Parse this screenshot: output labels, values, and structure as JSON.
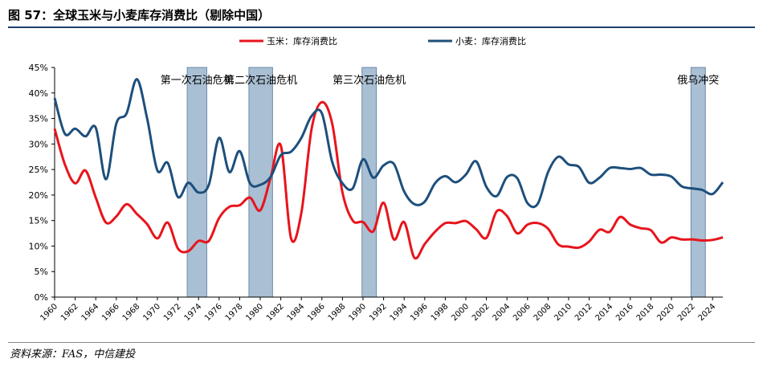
{
  "title": "图 57：全球玉米与小麦库存消费比（剔除中国）",
  "source": "资料来源：FAS，中信建投",
  "chart_data": {
    "type": "line",
    "y_ticks": [
      "0%",
      "5%",
      "10%",
      "15%",
      "20%",
      "25%",
      "30%",
      "35%",
      "40%",
      "45%"
    ],
    "ylim": [
      0,
      45
    ],
    "xlim": [
      1960,
      2025
    ],
    "x_ticks": [
      "1960",
      "1962",
      "1964",
      "1966",
      "1968",
      "1970",
      "1972",
      "1974",
      "1976",
      "1978",
      "1980",
      "1982",
      "1984",
      "1986",
      "1988",
      "1990",
      "1992",
      "1994",
      "1996",
      "1998",
      "2000",
      "2002",
      "2004",
      "2006",
      "2008",
      "2010",
      "2012",
      "2014",
      "2016",
      "2018",
      "2020",
      "2022",
      "2024"
    ],
    "x_tick_values": [
      1960,
      1962,
      1964,
      1966,
      1968,
      1970,
      1972,
      1974,
      1976,
      1978,
      1980,
      1982,
      1984,
      1986,
      1988,
      1990,
      1992,
      1994,
      1996,
      1998,
      2000,
      2002,
      2004,
      2006,
      2008,
      2010,
      2012,
      2014,
      2016,
      2018,
      2020,
      2022,
      2024
    ],
    "series": [
      {
        "name": "玉米：库存消费比",
        "color": "#e8141c",
        "points": [
          [
            1960,
            33
          ],
          [
            1961,
            26
          ],
          [
            1962,
            22.3
          ],
          [
            1963,
            24.8
          ],
          [
            1964,
            19.5
          ],
          [
            1965,
            14.6
          ],
          [
            1966,
            15.8
          ],
          [
            1967,
            18.2
          ],
          [
            1968,
            16.3
          ],
          [
            1969,
            14.3
          ],
          [
            1970,
            11.5
          ],
          [
            1971,
            14.6
          ],
          [
            1972,
            9.5
          ],
          [
            1973,
            9
          ],
          [
            1974,
            11
          ],
          [
            1975,
            11
          ],
          [
            1976,
            15.5
          ],
          [
            1977,
            17.7
          ],
          [
            1978,
            18
          ],
          [
            1979,
            19.5
          ],
          [
            1980,
            17
          ],
          [
            1981,
            23.3
          ],
          [
            1982,
            29.7
          ],
          [
            1983,
            11.5
          ],
          [
            1984,
            16.5
          ],
          [
            1985,
            33
          ],
          [
            1986,
            38.2
          ],
          [
            1987,
            34
          ],
          [
            1988,
            20.5
          ],
          [
            1989,
            15
          ],
          [
            1990,
            14.7
          ],
          [
            1991,
            12.9
          ],
          [
            1992,
            18.5
          ],
          [
            1993,
            11.3
          ],
          [
            1994,
            14.7
          ],
          [
            1995,
            7.7
          ],
          [
            1996,
            10.4
          ],
          [
            1997,
            12.8
          ],
          [
            1998,
            14.5
          ],
          [
            1999,
            14.5
          ],
          [
            2000,
            14.9
          ],
          [
            2001,
            13.3
          ],
          [
            2002,
            11.6
          ],
          [
            2003,
            16.8
          ],
          [
            2004,
            15.9
          ],
          [
            2005,
            12.5
          ],
          [
            2006,
            14.2
          ],
          [
            2007,
            14.5
          ],
          [
            2008,
            13.4
          ],
          [
            2009,
            10.3
          ],
          [
            2010,
            9.9
          ],
          [
            2011,
            9.7
          ],
          [
            2012,
            10.9
          ],
          [
            2013,
            13.2
          ],
          [
            2014,
            12.8
          ],
          [
            2015,
            15.7
          ],
          [
            2016,
            14.2
          ],
          [
            2017,
            13.5
          ],
          [
            2018,
            13.1
          ],
          [
            2019,
            10.7
          ],
          [
            2020,
            11.7
          ],
          [
            2021,
            11.3
          ],
          [
            2022,
            11.3
          ],
          [
            2023,
            11.1
          ],
          [
            2024,
            11.2
          ],
          [
            2025,
            11.7
          ]
        ]
      },
      {
        "name": "小麦：库存消费比",
        "color": "#1d4f7c",
        "points": [
          [
            1960,
            39
          ],
          [
            1961,
            32
          ],
          [
            1962,
            33
          ],
          [
            1963,
            31.5
          ],
          [
            1964,
            33.2
          ],
          [
            1965,
            23.1
          ],
          [
            1966,
            34
          ],
          [
            1967,
            36
          ],
          [
            1968,
            42.7
          ],
          [
            1969,
            35
          ],
          [
            1970,
            24.8
          ],
          [
            1971,
            26.3
          ],
          [
            1972,
            19.6
          ],
          [
            1973,
            22.4
          ],
          [
            1974,
            20.5
          ],
          [
            1975,
            22
          ],
          [
            1976,
            31.2
          ],
          [
            1977,
            24.5
          ],
          [
            1978,
            28.6
          ],
          [
            1979,
            22.3
          ],
          [
            1980,
            22
          ],
          [
            1981,
            23.5
          ],
          [
            1982,
            27.8
          ],
          [
            1983,
            28.5
          ],
          [
            1984,
            31.2
          ],
          [
            1985,
            35.5
          ],
          [
            1986,
            36
          ],
          [
            1987,
            26.5
          ],
          [
            1988,
            22.3
          ],
          [
            1989,
            21.3
          ],
          [
            1990,
            27
          ],
          [
            1991,
            23.4
          ],
          [
            1992,
            25.8
          ],
          [
            1993,
            26.1
          ],
          [
            1994,
            20.7
          ],
          [
            1995,
            18.2
          ],
          [
            1996,
            18.7
          ],
          [
            1997,
            22.3
          ],
          [
            1998,
            23.7
          ],
          [
            1999,
            22.5
          ],
          [
            2000,
            24
          ],
          [
            2001,
            26.6
          ],
          [
            2002,
            21.6
          ],
          [
            2003,
            19.8
          ],
          [
            2004,
            23.5
          ],
          [
            2005,
            23.3
          ],
          [
            2006,
            18.4
          ],
          [
            2007,
            18.3
          ],
          [
            2008,
            24.5
          ],
          [
            2009,
            27.5
          ],
          [
            2010,
            26
          ],
          [
            2011,
            25.5
          ],
          [
            2012,
            22.4
          ],
          [
            2013,
            23.4
          ],
          [
            2014,
            25.3
          ],
          [
            2015,
            25.3
          ],
          [
            2016,
            25.1
          ],
          [
            2017,
            25.3
          ],
          [
            2018,
            24
          ],
          [
            2019,
            24
          ],
          [
            2020,
            23.6
          ],
          [
            2021,
            21.7
          ],
          [
            2022,
            21.3
          ],
          [
            2023,
            21
          ],
          [
            2024,
            20.2
          ],
          [
            2025,
            22.5
          ]
        ]
      }
    ],
    "shaded_periods": [
      {
        "label": "第一次石油危机",
        "start": 1972.9,
        "end": 1974.8
      },
      {
        "label": "第二次石油危机",
        "start": 1978.9,
        "end": 1981.2
      },
      {
        "label": "第三次石油危机",
        "start": 1989.9,
        "end": 1991.3
      },
      {
        "label": "俄乌冲突",
        "start": 2021.9,
        "end": 2023.3
      }
    ],
    "shade_color": "#a9bfd3",
    "shade_border": "#6c89a8",
    "grid": false,
    "legend_position": "top"
  }
}
